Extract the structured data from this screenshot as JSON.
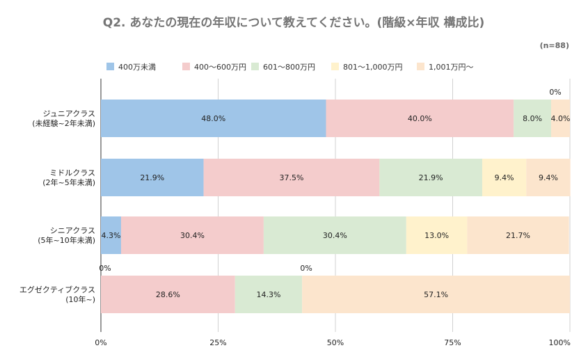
{
  "chart_data": {
    "type": "bar",
    "orientation": "horizontal",
    "stacked": true,
    "title": "Q2. あなたの現在の年収について教えてください。(階級×年収 構成比)",
    "note": "(n=88)",
    "categories": [
      [
        "ジュニアクラス",
        "(未経験~2年未満)"
      ],
      [
        "ミドルクラス",
        "(2年~5年未満)"
      ],
      [
        "シニアクラス",
        "(5年~10年未満)"
      ],
      [
        "エグゼクティブクラス",
        "(10年~)"
      ]
    ],
    "series": [
      {
        "name": "400万未満",
        "color": "#9fc5e8",
        "values": [
          48.0,
          21.9,
          4.3,
          0
        ]
      },
      {
        "name": "400～600万円",
        "color": "#f4cccc",
        "values": [
          40.0,
          37.5,
          30.4,
          28.6
        ]
      },
      {
        "name": "601～800万円",
        "color": "#d9ead3",
        "values": [
          8.0,
          21.9,
          30.4,
          14.3
        ]
      },
      {
        "name": "801～1,000万円",
        "color": "#fff2cc",
        "values": [
          0,
          9.4,
          13.0,
          0
        ]
      },
      {
        "name": "1,001万円～",
        "color": "#fce5cd",
        "values": [
          4.0,
          9.4,
          21.7,
          57.1
        ]
      }
    ],
    "labels": [
      [
        "48.0%",
        "40.0%",
        "8.0%",
        "0%",
        "4.0%"
      ],
      [
        "21.9%",
        "37.5%",
        "21.9%",
        "9.4%",
        "9.4%"
      ],
      [
        "4.3%",
        "30.4%",
        "30.4%",
        "13.0%",
        "21.7%"
      ],
      [
        "0%",
        "28.6%",
        "14.3%",
        "0%",
        "57.1%"
      ]
    ],
    "xlim": [
      0,
      100
    ],
    "x_ticks": [
      "0%",
      "25%",
      "50%",
      "75%",
      "100%"
    ],
    "grid": true,
    "legend_position": "top"
  }
}
